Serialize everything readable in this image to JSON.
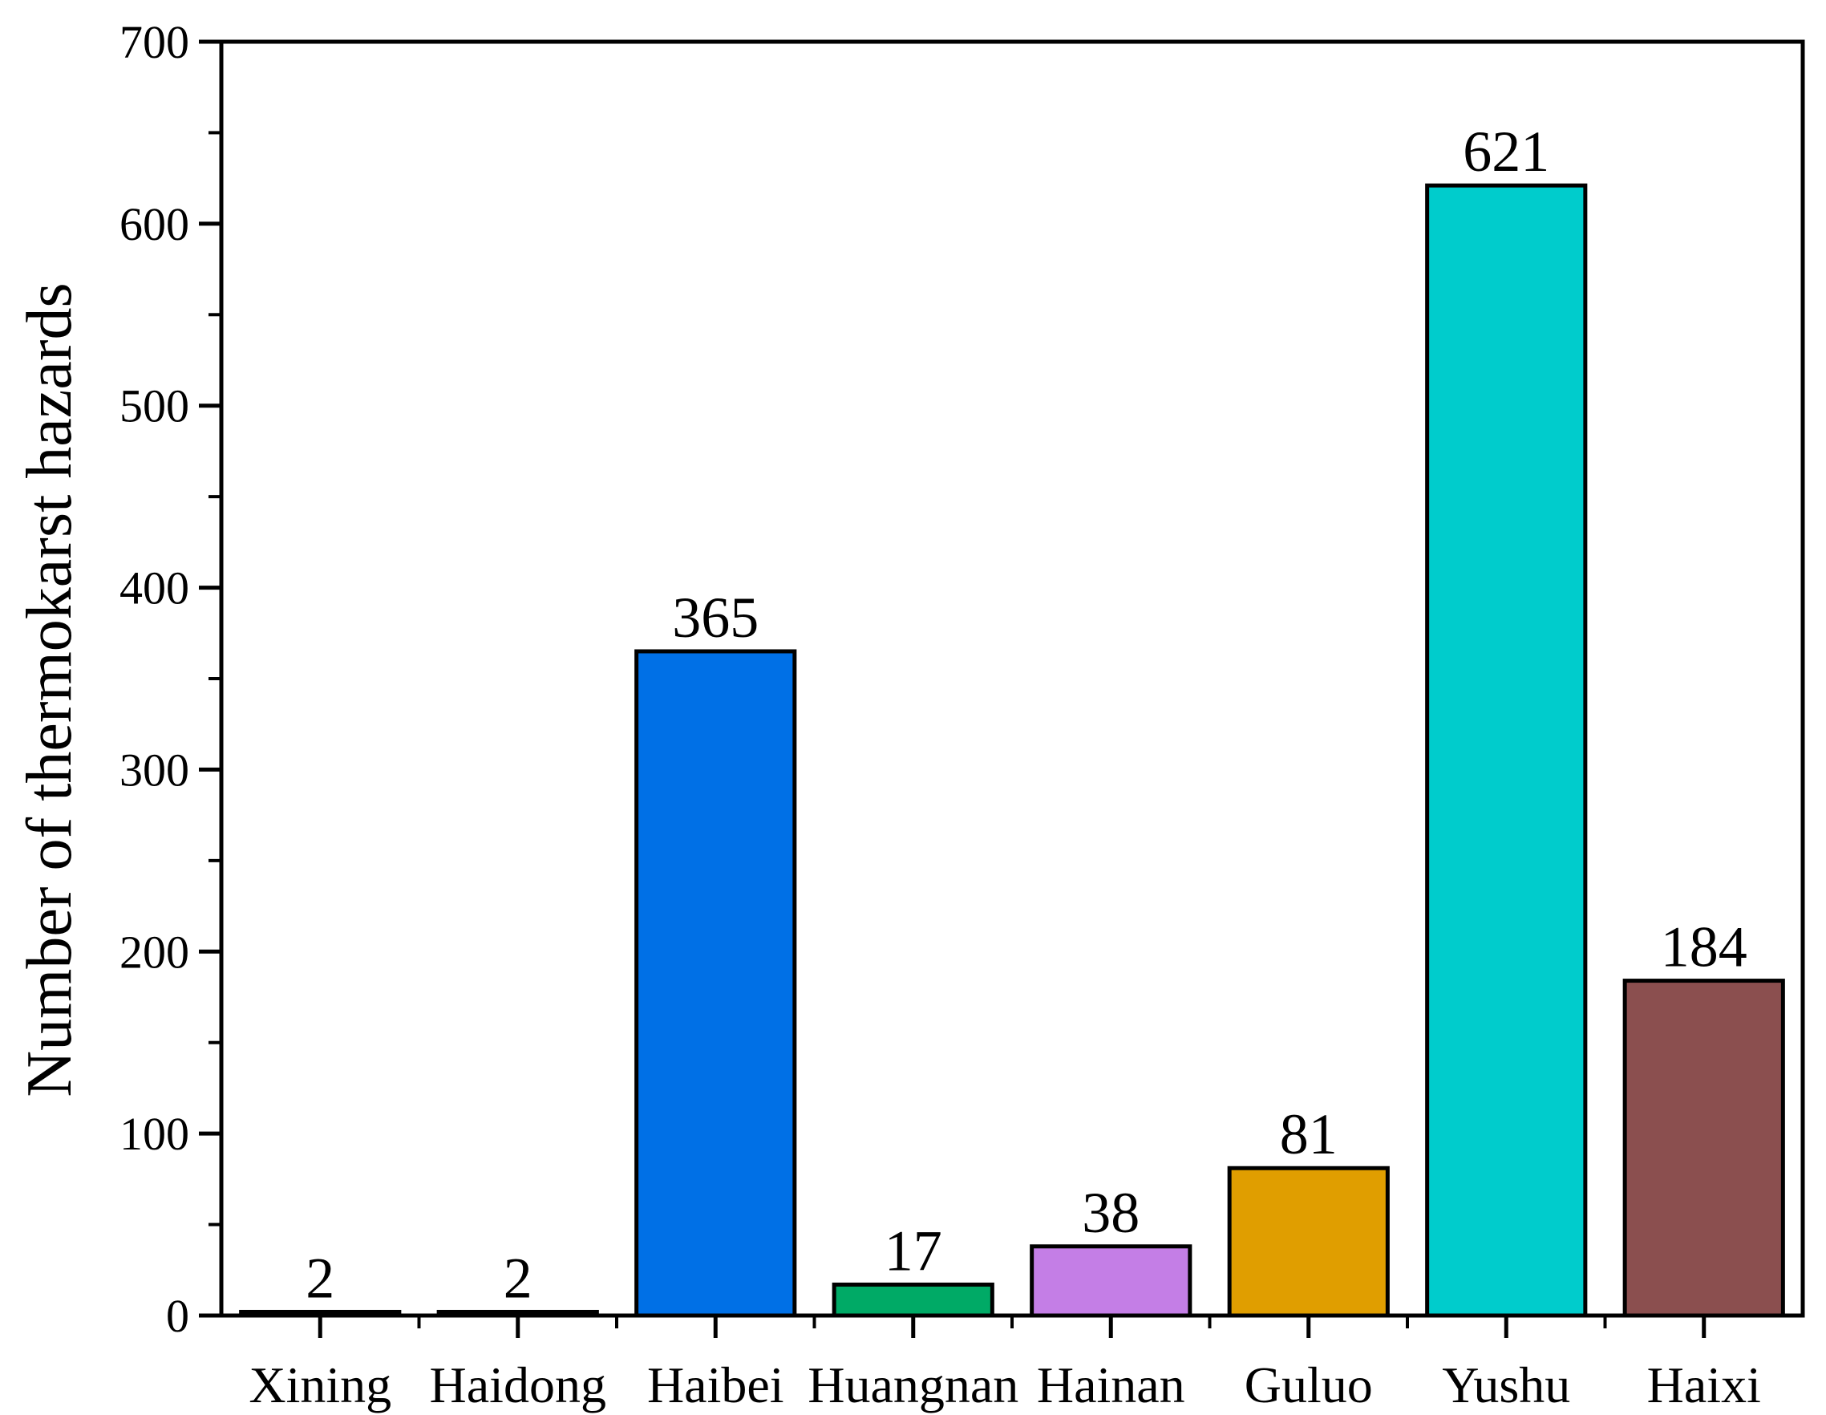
{
  "chart_data": {
    "type": "bar",
    "title": "",
    "xlabel": "",
    "ylabel": "Number of thermokarst hazards",
    "categories": [
      "Xining",
      "Haidong",
      "Haibei",
      "Huangnan",
      "Hainan",
      "Guluo",
      "Yushu",
      "Haixi"
    ],
    "values": [
      2,
      2,
      365,
      17,
      38,
      81,
      621,
      184
    ],
    "data_labels": [
      "2",
      "2",
      "365",
      "17",
      "38",
      "81",
      "621",
      "184"
    ],
    "colors": [
      "#000000",
      "#000000",
      "#0070E6",
      "#00AA66",
      "#C47EE6",
      "#E09E00",
      "#00CCCC",
      "#8B4F4F"
    ],
    "ylim": [
      0,
      700
    ],
    "yticks": [
      0,
      100,
      200,
      300,
      400,
      500,
      600,
      700
    ],
    "ytick_labels": [
      "0",
      "100",
      "200",
      "300",
      "400",
      "500",
      "600",
      "700"
    ],
    "grid": false,
    "legend": "none"
  }
}
